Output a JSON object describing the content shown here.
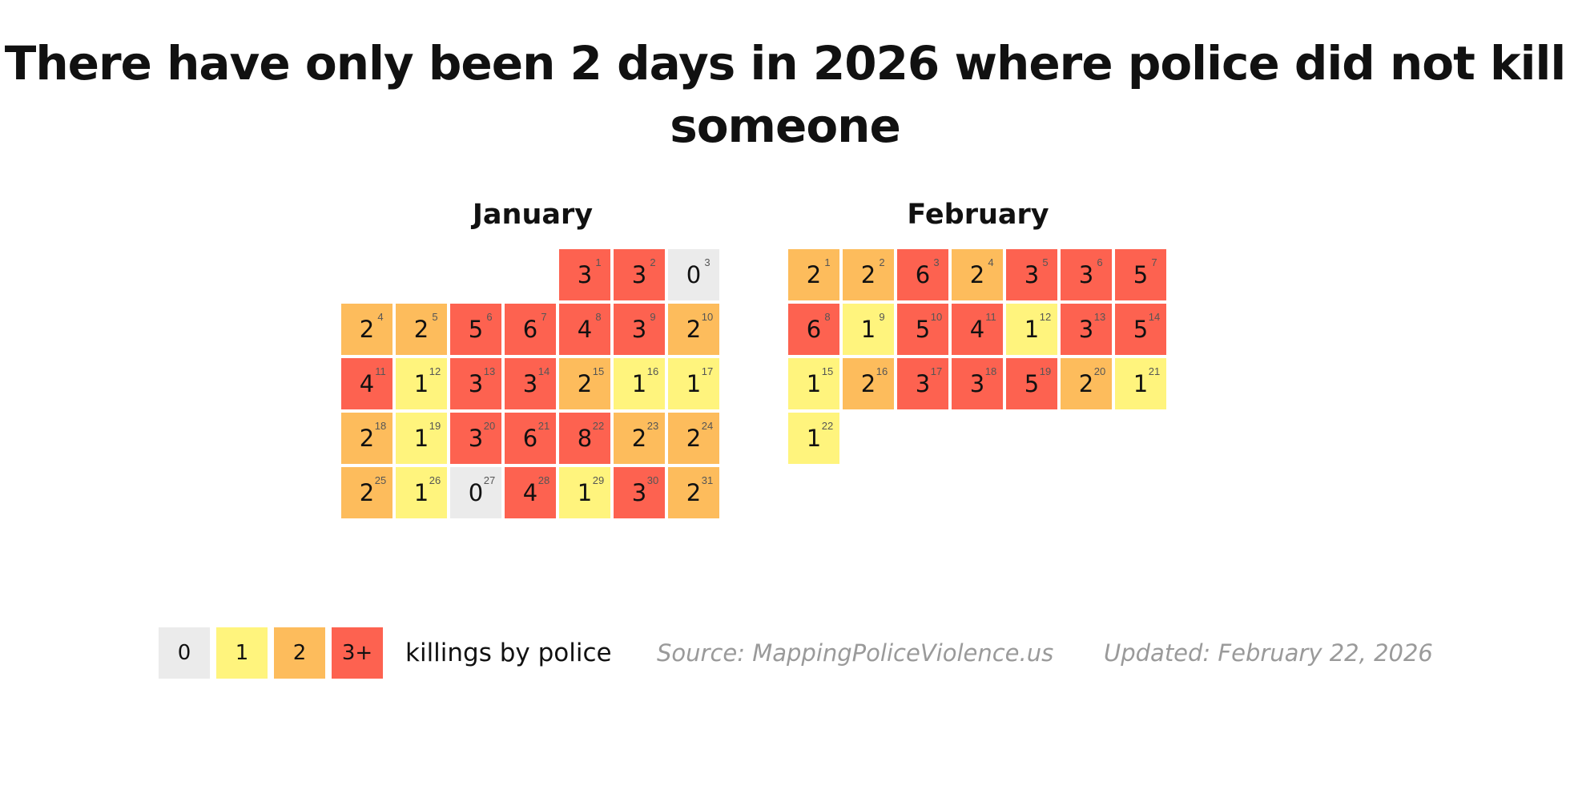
{
  "chart_data": {
    "type": "heatmap",
    "title": "There have only been 2 days in 2026 where police did not kill someone",
    "months": [
      {
        "name": "January",
        "start_weekday": 4,
        "days": [
          {
            "day": 1,
            "value": 3
          },
          {
            "day": 2,
            "value": 3
          },
          {
            "day": 3,
            "value": 0
          },
          {
            "day": 4,
            "value": 2
          },
          {
            "day": 5,
            "value": 2
          },
          {
            "day": 6,
            "value": 5
          },
          {
            "day": 7,
            "value": 6
          },
          {
            "day": 8,
            "value": 4
          },
          {
            "day": 9,
            "value": 3
          },
          {
            "day": 10,
            "value": 2
          },
          {
            "day": 11,
            "value": 4
          },
          {
            "day": 12,
            "value": 1
          },
          {
            "day": 13,
            "value": 3
          },
          {
            "day": 14,
            "value": 3
          },
          {
            "day": 15,
            "value": 2
          },
          {
            "day": 16,
            "value": 1
          },
          {
            "day": 17,
            "value": 1
          },
          {
            "day": 18,
            "value": 2
          },
          {
            "day": 19,
            "value": 1
          },
          {
            "day": 20,
            "value": 3
          },
          {
            "day": 21,
            "value": 6
          },
          {
            "day": 22,
            "value": 8
          },
          {
            "day": 23,
            "value": 2
          },
          {
            "day": 24,
            "value": 2
          },
          {
            "day": 25,
            "value": 2
          },
          {
            "day": 26,
            "value": 1
          },
          {
            "day": 27,
            "value": 0
          },
          {
            "day": 28,
            "value": 4
          },
          {
            "day": 29,
            "value": 1
          },
          {
            "day": 30,
            "value": 3
          },
          {
            "day": 31,
            "value": 2
          }
        ]
      },
      {
        "name": "February",
        "start_weekday": 0,
        "days": [
          {
            "day": 1,
            "value": 2
          },
          {
            "day": 2,
            "value": 2
          },
          {
            "day": 3,
            "value": 6
          },
          {
            "day": 4,
            "value": 2
          },
          {
            "day": 5,
            "value": 3
          },
          {
            "day": 6,
            "value": 3
          },
          {
            "day": 7,
            "value": 5
          },
          {
            "day": 8,
            "value": 6
          },
          {
            "day": 9,
            "value": 1
          },
          {
            "day": 10,
            "value": 5
          },
          {
            "day": 11,
            "value": 4
          },
          {
            "day": 12,
            "value": 1
          },
          {
            "day": 13,
            "value": 3
          },
          {
            "day": 14,
            "value": 5
          },
          {
            "day": 15,
            "value": 1
          },
          {
            "day": 16,
            "value": 2
          },
          {
            "day": 17,
            "value": 3
          },
          {
            "day": 18,
            "value": 3
          },
          {
            "day": 19,
            "value": 5
          },
          {
            "day": 20,
            "value": 2
          },
          {
            "day": 21,
            "value": 1
          },
          {
            "day": 22,
            "value": 1
          }
        ]
      }
    ],
    "legend": {
      "items": [
        {
          "label": "0",
          "color": "#ebebeb"
        },
        {
          "label": "1",
          "color": "#fff47d"
        },
        {
          "label": "2",
          "color": "#fdbc5c"
        },
        {
          "label": "3+",
          "color": "#fd6250"
        }
      ],
      "label": "killings by police"
    },
    "source": "Source: MappingPoliceViolence.us",
    "updated": "Updated: February 22, 2026"
  }
}
